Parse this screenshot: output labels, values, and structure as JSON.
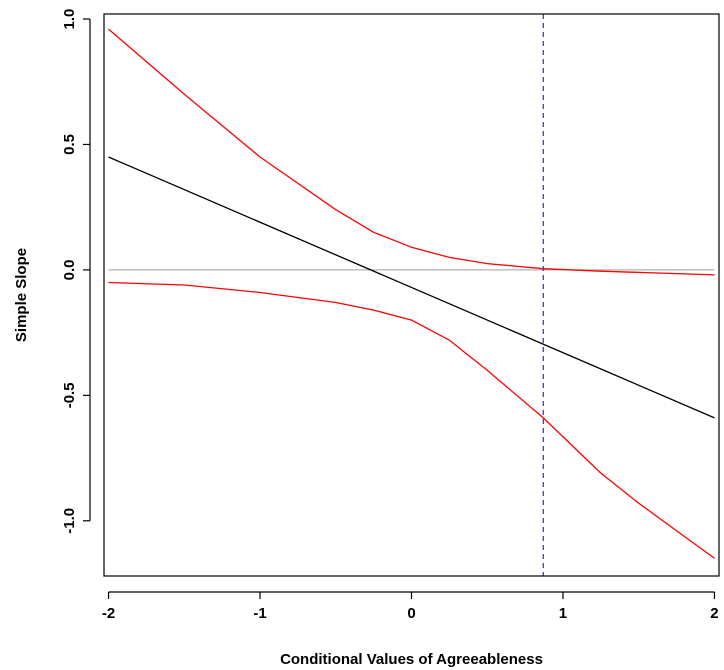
{
  "chart_data": {
    "type": "line",
    "title": "",
    "xlabel": "Conditional Values of Agreeableness",
    "ylabel": "Simple Slope",
    "xlim": [
      -2.03,
      2.03
    ],
    "ylim": [
      -1.22,
      1.02
    ],
    "x_ticks": [
      -2,
      -1,
      0,
      1,
      2
    ],
    "x_tick_labels": [
      "-2",
      "-1",
      "0",
      "1",
      "2"
    ],
    "y_ticks": [
      -1.0,
      -0.5,
      0.0,
      0.5,
      1.0
    ],
    "y_tick_labels": [
      "-1.0",
      "-0.5",
      "0.0",
      "0.5",
      "1.0"
    ],
    "grid": false,
    "legend": "none",
    "reference_line": {
      "y": 0,
      "color": "#b3b3b3"
    },
    "vertical_line": {
      "x": 0.87,
      "color": "#3b3bcc",
      "style": "dashed"
    },
    "series": [
      {
        "role": "estimate",
        "color": "#000000",
        "x": [
          -2,
          2
        ],
        "y": [
          0.45,
          -0.59
        ]
      },
      {
        "role": "upper-bound",
        "color": "#ff0000",
        "x": [
          -2,
          -1.5,
          -1,
          -0.5,
          -0.25,
          0,
          0.25,
          0.5,
          0.87,
          1.25,
          1.5,
          2
        ],
        "y": [
          0.96,
          0.7,
          0.45,
          0.24,
          0.15,
          0.09,
          0.05,
          0.025,
          0.005,
          -0.005,
          -0.01,
          -0.02
        ]
      },
      {
        "role": "lower-bound",
        "color": "#ff0000",
        "x": [
          -2,
          -1.5,
          -1,
          -0.5,
          -0.25,
          0,
          0.25,
          0.5,
          0.87,
          1.25,
          1.5,
          2
        ],
        "y": [
          -0.05,
          -0.06,
          -0.09,
          -0.13,
          -0.16,
          -0.2,
          -0.28,
          -0.4,
          -0.59,
          -0.81,
          -0.93,
          -1.15
        ]
      }
    ]
  }
}
